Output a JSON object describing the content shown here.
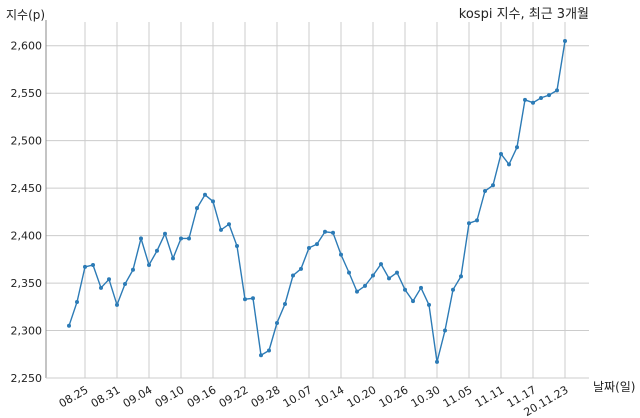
{
  "chart_data": {
    "type": "line",
    "title": "kospi 지수, 최근 3개월",
    "ylabel": "지수(p)",
    "xlabel": "날짜(일)",
    "ylim": [
      2250,
      2625
    ],
    "yticks": [
      2250,
      2300,
      2350,
      2400,
      2450,
      2500,
      2550,
      2600
    ],
    "ytick_labels": [
      "2,250",
      "2,300",
      "2,350",
      "2,400",
      "2,450",
      "2,500",
      "2,550",
      "2,600"
    ],
    "xtick_labels": [
      "08.25",
      "08.31",
      "09.04",
      "09.10",
      "09.16",
      "09.22",
      "09.28",
      "10.07",
      "10.14",
      "10.20",
      "10.26",
      "10.30",
      "11.05",
      "11.11",
      "11.17",
      "20.11.23"
    ],
    "xtick_indices": [
      2,
      6,
      10,
      14,
      18,
      22,
      26,
      30,
      34,
      38,
      42,
      46,
      50,
      54,
      58,
      62
    ],
    "grid": true,
    "color": "#2c7bb6",
    "series": [
      {
        "values": [
          2305,
          2330,
          2367,
          2369,
          2345,
          2354,
          2327,
          2349,
          2364,
          2397,
          2369,
          2384,
          2402,
          2376,
          2397,
          2397,
          2429,
          2443,
          2436,
          2406,
          2412,
          2389,
          2333,
          2334,
          2274,
          2279,
          2308,
          2328,
          2358,
          2365,
          2387,
          2391,
          2404,
          2403,
          2380,
          2361,
          2341,
          2347,
          2358,
          2370,
          2355,
          2361,
          2343,
          2331,
          2345,
          2327,
          2267,
          2300,
          2343,
          2357,
          2413,
          2416,
          2447,
          2453,
          2486,
          2475,
          2493,
          2543,
          2540,
          2545,
          2548,
          2553,
          2605
        ]
      }
    ]
  }
}
